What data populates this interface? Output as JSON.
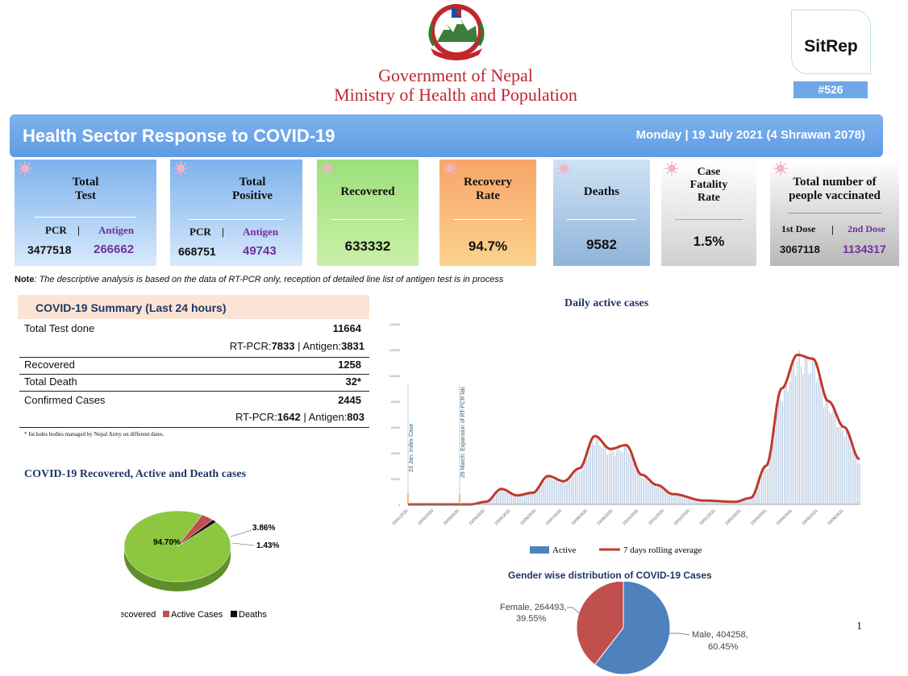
{
  "header": {
    "gov_line1": "Government of Nepal",
    "gov_line2": "Ministry of Health and Population",
    "sitrep_label": "SitRep",
    "sitrep_number": "#526"
  },
  "banner": {
    "title": "Health Sector Response to COVID-19",
    "date": "Monday | 19 July 2021 (4 Shrawan 2078)"
  },
  "cards": {
    "total_test": {
      "title1": "Total",
      "title2": "Test",
      "pcr_label": "PCR",
      "antigen_label": "Antigen",
      "pcr": "3477518",
      "antigen": "266662"
    },
    "total_positive": {
      "title1": "Total",
      "title2": "Positive",
      "pcr_label": "PCR",
      "antigen_label": "Antigen",
      "pcr": "668751",
      "antigen": "49743"
    },
    "recovered": {
      "title": "Recovered",
      "value": "633332"
    },
    "recovery_rate": {
      "title1": "Recovery",
      "title2": "Rate",
      "value": "94.7%"
    },
    "deaths": {
      "title": "Deaths",
      "value": "9582"
    },
    "cfr": {
      "title1": "Case",
      "title2": "Fatality",
      "title3": "Rate",
      "value": "1.5%"
    },
    "vaccinated": {
      "title1": "Total number of",
      "title2": "people vaccinated",
      "dose1_label": "1st Dose",
      "dose2_label": "2nd Dose",
      "dose1": "3067118",
      "dose2": "1134317"
    }
  },
  "note": {
    "label": "Note",
    "text": ": The descriptive analysis is based on the data of RT-PCR only, reception of detailed line list of antigen test is in process"
  },
  "summary": {
    "title": "COVID-19 Summary (Last 24 hours)",
    "total_test_label": "Total Test done",
    "total_test_value": "11664",
    "test_rtpcr_label": "RT-PCR:",
    "test_rtpcr": "7833",
    "test_antigen_label": " | Antigen:",
    "test_antigen": "3831",
    "recovered_label": "Recovered",
    "recovered_value": "1258",
    "death_label": "Total Death",
    "death_value": "32*",
    "confirmed_label": "Confirmed Cases",
    "confirmed_value": "2445",
    "conf_rtpcr_label": "RT-PCR:",
    "conf_rtpcr": "1642",
    "conf_antigen_label": " | Antigen:",
    "conf_antigen": "803",
    "footnote": "* Includes bodies managed by Nepal Army on different dates."
  },
  "colors": {
    "recovered": "#8dc63f",
    "active": "#c0504d",
    "deaths": "#111111",
    "bar": "#b8cce4",
    "line": "#c0392b",
    "male": "#4f81bd",
    "female": "#c0504d"
  },
  "chart_data": [
    {
      "type": "pie",
      "title": "COVID-19 Recovered, Active and Death cases",
      "labels": [
        "Recovered",
        "Active Cases",
        "Deaths"
      ],
      "values": [
        94.7,
        3.86,
        1.43
      ],
      "data_labels": [
        "94.70%",
        "3.86%",
        "1.43%"
      ],
      "legend": "bottom"
    },
    {
      "type": "bar",
      "title": "Daily active cases",
      "series": [
        {
          "name": "Active",
          "type": "bar"
        },
        {
          "name": "7 days rolling average",
          "type": "line"
        }
      ],
      "ylim": [
        0,
        140000
      ],
      "yticks": [
        "0",
        "20000",
        "40000",
        "60000",
        "80000",
        "100000",
        "120000",
        "140000"
      ],
      "xticks": [
        "23/01/2020",
        "23/02/2020",
        "23/03/2020",
        "23/04/2020",
        "23/05/2020",
        "23/06/2020",
        "23/07/2020",
        "23/08/2020",
        "23/09/2020",
        "23/10/2020",
        "23/11/2020",
        "23/12/2020",
        "23/01/2021",
        "23/02/2021",
        "23/03/2021",
        "23/04/2021",
        "23/05/2021",
        "23/06/2021"
      ],
      "keypoints": [
        [
          0,
          0
        ],
        [
          2,
          0
        ],
        [
          4,
          0
        ],
        [
          5,
          2000
        ],
        [
          6,
          12000
        ],
        [
          7,
          7000
        ],
        [
          8,
          9000
        ],
        [
          9,
          22000
        ],
        [
          10,
          18000
        ],
        [
          11,
          28000
        ],
        [
          12,
          53000
        ],
        [
          13,
          43000
        ],
        [
          14,
          46000
        ],
        [
          15,
          23000
        ],
        [
          16,
          15000
        ],
        [
          17,
          8000
        ],
        [
          19,
          3000
        ],
        [
          21,
          2000
        ],
        [
          22,
          5000
        ],
        [
          23,
          30000
        ],
        [
          24,
          90000
        ],
        [
          25,
          116000
        ],
        [
          26,
          113000
        ],
        [
          27,
          80000
        ],
        [
          28,
          60000
        ],
        [
          29,
          35000
        ]
      ],
      "annotations": [
        "23 Jan: Index Case",
        "29 March: Expansion of RT-PCR lab"
      ],
      "legend": "bottom"
    },
    {
      "type": "pie",
      "title": "Gender wise distribution of COVID-19 Cases",
      "labels": [
        "Male",
        "Female"
      ],
      "values": [
        404258,
        264493
      ],
      "percents": [
        "60.45%",
        "39.55%"
      ],
      "data_labels": [
        "Male, 404258,",
        "60.45%",
        "Female, 264493,",
        "39.55%"
      ]
    }
  ],
  "page_number": "1"
}
